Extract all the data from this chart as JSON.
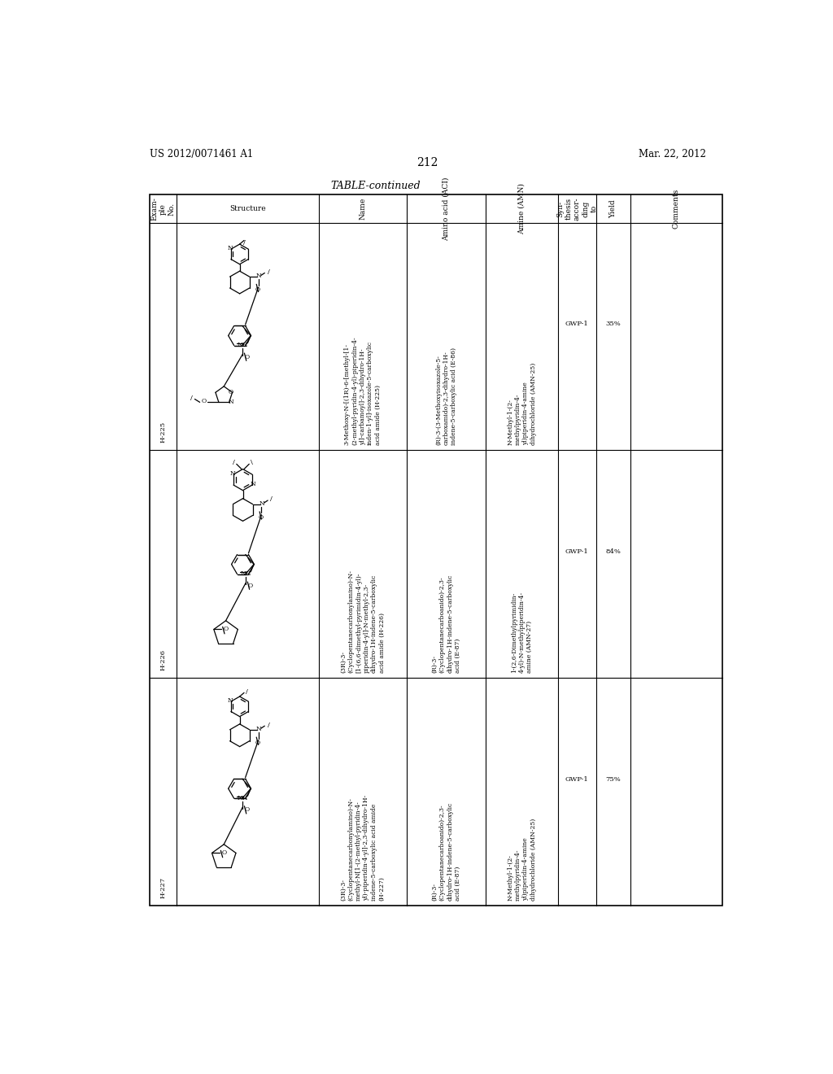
{
  "header_left": "US 2012/0071461 A1",
  "header_right": "Mar. 22, 2012",
  "page_number": "212",
  "table_title": "TABLE-continued",
  "background_color": "#ffffff",
  "text_color": "#000000",
  "col_headers_rotated": [
    "Comments",
    "Yield",
    "Syn-\nthesis\naccor-\nding\nto",
    "Amine (AMN)",
    "Amino acid (ACI)",
    "Name",
    "Structure",
    "Exam-\nple\nNo."
  ],
  "rows": [
    {
      "example": "H-225",
      "name": "3-Methoxy-N-[(1R)-6-[methyl-[1-\n(2-methyl-pyridin-4-yl)-piperidin-4-\nyl]-carbamoyl]-2,3-dihydro-1H-\ninden-1-yl]-isoxazole-5-carboxylic\nacid amide (H-225)",
      "amino_acid": "(R)-3-(3-Methoxyisoxazole-5-\ncarboxamido)-2,3-dihydro-1H-\nindene-5-carboxylic acid (E-86)",
      "amine": "N-Methyl-1-(2-\nmethylpyridin-4-\nyl)piperidin-4-amine\ndihydrochloride (AMN-25)",
      "synthesis": "GWP-1",
      "yield": "35%",
      "comments": ""
    },
    {
      "example": "H-226",
      "name": "(3R)-3-\n(Cyclopentanecarbonylamino)-N-\n[1-(6,6-dimethyl-pyrimidin-4-yl)-\npiperidin-4-yl]-N-methyl-2,3-\ndihydro-1H-indene-5-carboxylic\nacid amide (H-226)",
      "amino_acid": "(R)-3-\n(Cyclopentanecarboanido)-2,3-\ndihydro-1H-indene-5-carboxylic\nacid (E-87)",
      "amine": "1-(2,6-Dimethylpyrimidin-\n4-yl)-N-methylpiperidin-4-\namine (AMN-27)",
      "synthesis": "GWP-1",
      "yield": "84%",
      "comments": ""
    },
    {
      "example": "H-227",
      "name": "(3R)-3-\n(Cyclopentanecarbonylamino)-N-\nmethyl-N[1-(2-methyl-pyridin-4-\nyl)-piperidin-4-yl]-2,3-dihydro-1H-\nindene-5-carboxylic acid amide\n(H-227)",
      "amino_acid": "(R)-3-\n(Cyclopentanecarboanido)-2,3-\ndihydro-1H-indene-5-carboxylic\nacid (E-87)",
      "amine": "N-Methyl-1-(2-\nmethylpyridin-4-\nyl)piperidin-4-amine\ndihydrochloride (AMN-25)",
      "synthesis": "GWP-1",
      "yield": "75%",
      "comments": ""
    }
  ]
}
